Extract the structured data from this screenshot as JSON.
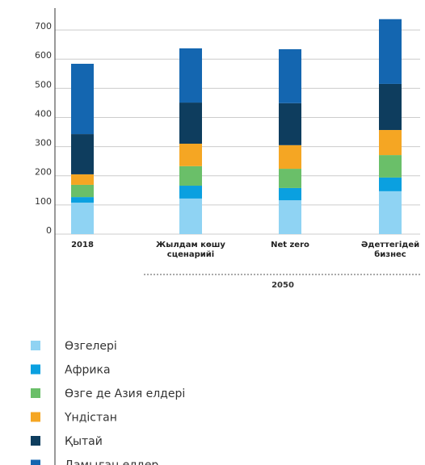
{
  "chart_data": {
    "type": "stacked_bar",
    "categories": [
      "2018",
      "Жылдам көшу сценарийі",
      "Net zero",
      "Әдеттегідей бизнес"
    ],
    "group_label": "2050",
    "series": [
      {
        "name": "Өзгелері",
        "color": "#8fd3f3",
        "values": [
          108,
          122,
          116,
          147
        ]
      },
      {
        "name": "Африка",
        "color": "#0aa0e0",
        "values": [
          19,
          44,
          42,
          47
        ]
      },
      {
        "name": "Өзге де Азия елдері",
        "color": "#6abf69",
        "values": [
          42,
          67,
          66,
          77
        ]
      },
      {
        "name": "Үндістан",
        "color": "#f5a623",
        "values": [
          36,
          77,
          81,
          86
        ]
      },
      {
        "name": "Қытай",
        "color": "#0e3d5e",
        "values": [
          138,
          141,
          144,
          158
        ]
      },
      {
        "name": "Дамыған елдер",
        "color": "#1466b0",
        "values": [
          241,
          186,
          185,
          222
        ]
      }
    ],
    "ylim": [
      0,
      775
    ],
    "yticks": [
      0,
      100,
      200,
      300,
      400,
      500,
      600,
      700
    ],
    "grid": true
  }
}
